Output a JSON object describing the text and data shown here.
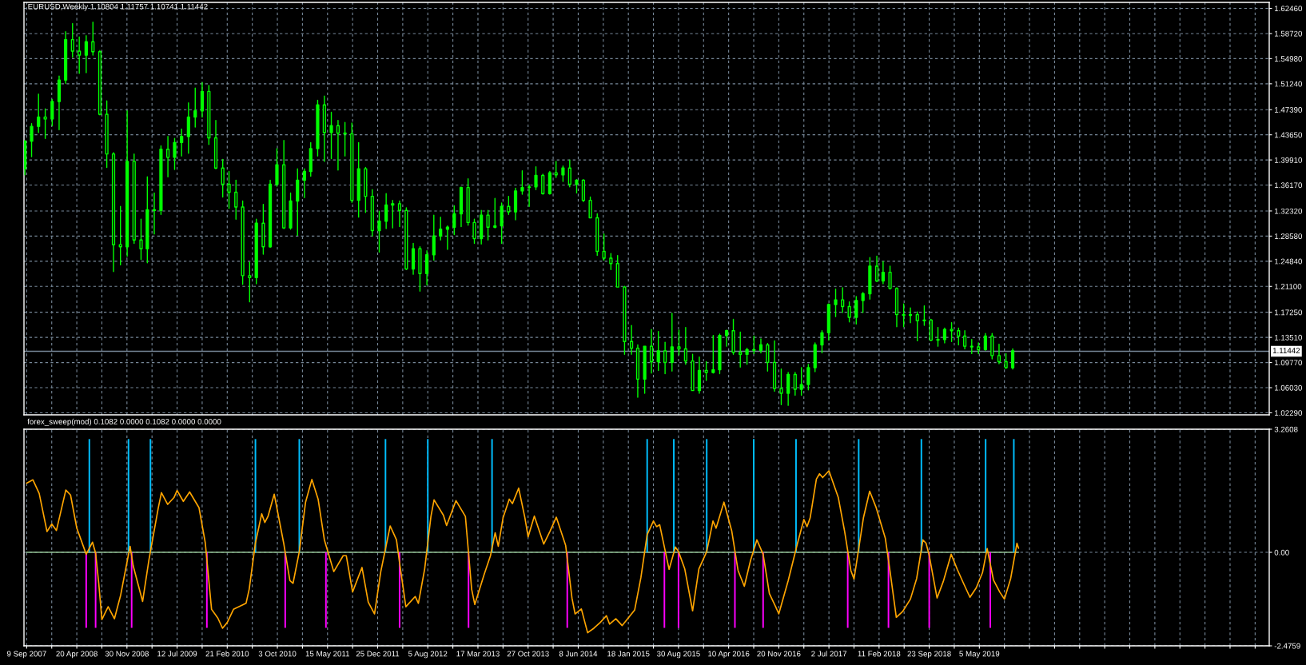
{
  "chart_data": [
    {
      "type": "candlestick",
      "title": "EURUSD,Weekly 1.10804 1.11757 1.10741 1.11442",
      "color": "#00ff00",
      "x": [
        "2007-09",
        "2007-10",
        "2007-11",
        "2007-12",
        "2008-01",
        "2008-02",
        "2008-03",
        "2008-04",
        "2008-05",
        "2008-06",
        "2008-07",
        "2008-08",
        "2008-09",
        "2008-10",
        "2008-11",
        "2008-12",
        "2009-01",
        "2009-02",
        "2009-03",
        "2009-04",
        "2009-05",
        "2009-06",
        "2009-07",
        "2009-08",
        "2009-09",
        "2009-10",
        "2009-11",
        "2009-12",
        "2010-01",
        "2010-02",
        "2010-03",
        "2010-04",
        "2010-05",
        "2010-06",
        "2010-07",
        "2010-08",
        "2010-09",
        "2010-10",
        "2010-11",
        "2010-12",
        "2011-01",
        "2011-02",
        "2011-03",
        "2011-04",
        "2011-05",
        "2011-06",
        "2011-07",
        "2011-08",
        "2011-09",
        "2011-10",
        "2011-11",
        "2011-12",
        "2012-01",
        "2012-02",
        "2012-03",
        "2012-04",
        "2012-05",
        "2012-06",
        "2012-07",
        "2012-08",
        "2012-09",
        "2012-10",
        "2012-11",
        "2012-12",
        "2013-01",
        "2013-02",
        "2013-03",
        "2013-04",
        "2013-05",
        "2013-06",
        "2013-07",
        "2013-08",
        "2013-09",
        "2013-10",
        "2013-11",
        "2013-12",
        "2014-01",
        "2014-02",
        "2014-03",
        "2014-04",
        "2014-05",
        "2014-06",
        "2014-07",
        "2014-08",
        "2014-09",
        "2014-10",
        "2014-11",
        "2014-12",
        "2015-01",
        "2015-02",
        "2015-03",
        "2015-04",
        "2015-05",
        "2015-06",
        "2015-07",
        "2015-08",
        "2015-09",
        "2015-10",
        "2015-11",
        "2015-12",
        "2016-01",
        "2016-02",
        "2016-03",
        "2016-04",
        "2016-05",
        "2016-06",
        "2016-07",
        "2016-08",
        "2016-09",
        "2016-10",
        "2016-11",
        "2016-12",
        "2017-01",
        "2017-02",
        "2017-03",
        "2017-04",
        "2017-05",
        "2017-06",
        "2017-07",
        "2017-08",
        "2017-09",
        "2017-10",
        "2017-11",
        "2017-12",
        "2018-01",
        "2018-02",
        "2018-03",
        "2018-04",
        "2018-05",
        "2018-06",
        "2018-07",
        "2018-08",
        "2018-09",
        "2018-10",
        "2018-11",
        "2018-12",
        "2019-01",
        "2019-02",
        "2019-03",
        "2019-04",
        "2019-05",
        "2019-06",
        "2019-07",
        "2019-08",
        "2019-09",
        "2019-10"
      ],
      "ohlc": [
        [
          1.386,
          1.428,
          1.377,
          1.427
        ],
        [
          1.427,
          1.453,
          1.404,
          1.449
        ],
        [
          1.449,
          1.497,
          1.44,
          1.463
        ],
        [
          1.463,
          1.475,
          1.431,
          1.46
        ],
        [
          1.46,
          1.489,
          1.45,
          1.486
        ],
        [
          1.486,
          1.524,
          1.444,
          1.518
        ],
        [
          1.518,
          1.59,
          1.513,
          1.578
        ],
        [
          1.578,
          1.602,
          1.552,
          1.561
        ],
        [
          1.561,
          1.582,
          1.528,
          1.555
        ],
        [
          1.555,
          1.584,
          1.529,
          1.575
        ],
        [
          1.575,
          1.604,
          1.555,
          1.56
        ],
        [
          1.56,
          1.562,
          1.466,
          1.467
        ],
        [
          1.467,
          1.487,
          1.388,
          1.408
        ],
        [
          1.408,
          1.41,
          1.233,
          1.273
        ],
        [
          1.273,
          1.33,
          1.243,
          1.27
        ],
        [
          1.27,
          1.472,
          1.256,
          1.397
        ],
        [
          1.397,
          1.408,
          1.275,
          1.28
        ],
        [
          1.28,
          1.311,
          1.251,
          1.267
        ],
        [
          1.267,
          1.374,
          1.246,
          1.325
        ],
        [
          1.325,
          1.35,
          1.289,
          1.324
        ],
        [
          1.324,
          1.42,
          1.318,
          1.415
        ],
        [
          1.415,
          1.434,
          1.374,
          1.403
        ],
        [
          1.403,
          1.431,
          1.385,
          1.425
        ],
        [
          1.425,
          1.445,
          1.405,
          1.434
        ],
        [
          1.434,
          1.484,
          1.409,
          1.463
        ],
        [
          1.463,
          1.506,
          1.448,
          1.472
        ],
        [
          1.472,
          1.514,
          1.463,
          1.501
        ],
        [
          1.501,
          1.51,
          1.422,
          1.432
        ],
        [
          1.432,
          1.458,
          1.386,
          1.387
        ],
        [
          1.387,
          1.4,
          1.344,
          1.363
        ],
        [
          1.363,
          1.382,
          1.327,
          1.351
        ],
        [
          1.351,
          1.369,
          1.311,
          1.329
        ],
        [
          1.329,
          1.338,
          1.214,
          1.227
        ],
        [
          1.227,
          1.247,
          1.188,
          1.224
        ],
        [
          1.224,
          1.311,
          1.215,
          1.305
        ],
        [
          1.305,
          1.333,
          1.259,
          1.27
        ],
        [
          1.27,
          1.369,
          1.269,
          1.363
        ],
        [
          1.363,
          1.416,
          1.36,
          1.392
        ],
        [
          1.392,
          1.428,
          1.297,
          1.298
        ],
        [
          1.298,
          1.35,
          1.296,
          1.338
        ],
        [
          1.338,
          1.386,
          1.287,
          1.369
        ],
        [
          1.369,
          1.386,
          1.343,
          1.382
        ],
        [
          1.382,
          1.425,
          1.375,
          1.416
        ],
        [
          1.416,
          1.488,
          1.405,
          1.481
        ],
        [
          1.481,
          1.494,
          1.397,
          1.44
        ],
        [
          1.44,
          1.47,
          1.401,
          1.45
        ],
        [
          1.45,
          1.458,
          1.384,
          1.439
        ],
        [
          1.439,
          1.455,
          1.405,
          1.438
        ],
        [
          1.438,
          1.454,
          1.336,
          1.339
        ],
        [
          1.339,
          1.425,
          1.314,
          1.386
        ],
        [
          1.386,
          1.388,
          1.321,
          1.345
        ],
        [
          1.345,
          1.355,
          1.286,
          1.294
        ],
        [
          1.294,
          1.323,
          1.262,
          1.308
        ],
        [
          1.308,
          1.349,
          1.297,
          1.332
        ],
        [
          1.332,
          1.339,
          1.298,
          1.334
        ],
        [
          1.334,
          1.338,
          1.3,
          1.324
        ],
        [
          1.324,
          1.328,
          1.236,
          1.237
        ],
        [
          1.237,
          1.275,
          1.229,
          1.267
        ],
        [
          1.267,
          1.27,
          1.204,
          1.23
        ],
        [
          1.23,
          1.264,
          1.213,
          1.258
        ],
        [
          1.258,
          1.317,
          1.25,
          1.286
        ],
        [
          1.286,
          1.314,
          1.28,
          1.296
        ],
        [
          1.296,
          1.301,
          1.266,
          1.299
        ],
        [
          1.299,
          1.331,
          1.288,
          1.319
        ],
        [
          1.319,
          1.359,
          1.3,
          1.358
        ],
        [
          1.358,
          1.371,
          1.302,
          1.306
        ],
        [
          1.306,
          1.311,
          1.275,
          1.282
        ],
        [
          1.282,
          1.324,
          1.274,
          1.317
        ],
        [
          1.317,
          1.324,
          1.28,
          1.299
        ],
        [
          1.299,
          1.342,
          1.298,
          1.301
        ],
        [
          1.301,
          1.335,
          1.275,
          1.33
        ],
        [
          1.33,
          1.345,
          1.318,
          1.322
        ],
        [
          1.322,
          1.357,
          1.31,
          1.353
        ],
        [
          1.353,
          1.383,
          1.348,
          1.358
        ],
        [
          1.358,
          1.362,
          1.33,
          1.359
        ],
        [
          1.359,
          1.389,
          1.355,
          1.376
        ],
        [
          1.376,
          1.378,
          1.348,
          1.349
        ],
        [
          1.349,
          1.382,
          1.348,
          1.38
        ],
        [
          1.38,
          1.397,
          1.373,
          1.377
        ],
        [
          1.377,
          1.39,
          1.367,
          1.387
        ],
        [
          1.387,
          1.399,
          1.359,
          1.363
        ],
        [
          1.363,
          1.37,
          1.35,
          1.369
        ],
        [
          1.369,
          1.37,
          1.337,
          1.339
        ],
        [
          1.339,
          1.344,
          1.313,
          1.313
        ],
        [
          1.313,
          1.319,
          1.257,
          1.263
        ],
        [
          1.263,
          1.289,
          1.25,
          1.253
        ],
        [
          1.253,
          1.26,
          1.236,
          1.245
        ],
        [
          1.245,
          1.257,
          1.21,
          1.21
        ],
        [
          1.21,
          1.211,
          1.11,
          1.129
        ],
        [
          1.129,
          1.153,
          1.11,
          1.119
        ],
        [
          1.119,
          1.124,
          1.046,
          1.073
        ],
        [
          1.073,
          1.122,
          1.052,
          1.122
        ],
        [
          1.122,
          1.147,
          1.082,
          1.099
        ],
        [
          1.099,
          1.144,
          1.086,
          1.115
        ],
        [
          1.115,
          1.128,
          1.081,
          1.098
        ],
        [
          1.098,
          1.171,
          1.085,
          1.121
        ],
        [
          1.121,
          1.146,
          1.109,
          1.118
        ],
        [
          1.118,
          1.15,
          1.095,
          1.1
        ],
        [
          1.1,
          1.11,
          1.056,
          1.056
        ],
        [
          1.056,
          1.106,
          1.052,
          1.086
        ],
        [
          1.086,
          1.099,
          1.071,
          1.083
        ],
        [
          1.083,
          1.138,
          1.082,
          1.087
        ],
        [
          1.087,
          1.14,
          1.081,
          1.138
        ],
        [
          1.138,
          1.146,
          1.122,
          1.145
        ],
        [
          1.145,
          1.162,
          1.11,
          1.113
        ],
        [
          1.113,
          1.143,
          1.091,
          1.11
        ],
        [
          1.11,
          1.119,
          1.095,
          1.117
        ],
        [
          1.117,
          1.137,
          1.111,
          1.116
        ],
        [
          1.116,
          1.133,
          1.112,
          1.124
        ],
        [
          1.124,
          1.126,
          1.085,
          1.098
        ],
        [
          1.098,
          1.13,
          1.055,
          1.059
        ],
        [
          1.059,
          1.088,
          1.035,
          1.052
        ],
        [
          1.052,
          1.083,
          1.034,
          1.08
        ],
        [
          1.08,
          1.083,
          1.049,
          1.058
        ],
        [
          1.058,
          1.09,
          1.049,
          1.065
        ],
        [
          1.065,
          1.095,
          1.057,
          1.09
        ],
        [
          1.09,
          1.127,
          1.084,
          1.124
        ],
        [
          1.124,
          1.145,
          1.112,
          1.142
        ],
        [
          1.142,
          1.185,
          1.131,
          1.184
        ],
        [
          1.184,
          1.207,
          1.166,
          1.191
        ],
        [
          1.191,
          1.209,
          1.172,
          1.181
        ],
        [
          1.181,
          1.188,
          1.158,
          1.165
        ],
        [
          1.165,
          1.196,
          1.155,
          1.19
        ],
        [
          1.19,
          1.202,
          1.172,
          1.2
        ],
        [
          1.2,
          1.254,
          1.192,
          1.241
        ],
        [
          1.241,
          1.256,
          1.218,
          1.219
        ],
        [
          1.219,
          1.248,
          1.215,
          1.232
        ],
        [
          1.232,
          1.241,
          1.207,
          1.208
        ],
        [
          1.208,
          1.209,
          1.151,
          1.169
        ],
        [
          1.169,
          1.185,
          1.151,
          1.168
        ],
        [
          1.168,
          1.179,
          1.157,
          1.169
        ],
        [
          1.169,
          1.173,
          1.13,
          1.16
        ],
        [
          1.16,
          1.182,
          1.153,
          1.161
        ],
        [
          1.161,
          1.162,
          1.13,
          1.131
        ],
        [
          1.131,
          1.15,
          1.122,
          1.132
        ],
        [
          1.132,
          1.149,
          1.127,
          1.147
        ],
        [
          1.147,
          1.157,
          1.129,
          1.145
        ],
        [
          1.145,
          1.149,
          1.124,
          1.137
        ],
        [
          1.137,
          1.145,
          1.118,
          1.122
        ],
        [
          1.122,
          1.132,
          1.111,
          1.121
        ],
        [
          1.121,
          1.127,
          1.111,
          1.117
        ],
        [
          1.117,
          1.141,
          1.116,
          1.137
        ],
        [
          1.137,
          1.141,
          1.103,
          1.108
        ],
        [
          1.108,
          1.125,
          1.096,
          1.099
        ],
        [
          1.099,
          1.111,
          1.089,
          1.09
        ],
        [
          1.09,
          1.118,
          1.088,
          1.115
        ]
      ],
      "xlim": [
        "2007-08-28",
        "2022-11-20"
      ],
      "ylim": [
        1.0199,
        1.6335
      ],
      "xticks": [
        {
          "value": "2007-09-09",
          "label": null
        },
        {
          "value": "2007-12-30",
          "label": null
        },
        {
          "value": "2008-04-20",
          "label": null
        },
        {
          "value": "2008-08-10",
          "label": null
        },
        {
          "value": "2008-11-30",
          "label": null
        },
        {
          "value": "2009-03-22",
          "label": null
        },
        {
          "value": "2009-07-12",
          "label": null
        },
        {
          "value": "2009-11-01",
          "label": null
        },
        {
          "value": "2010-02-21",
          "label": null
        },
        {
          "value": "2010-06-13",
          "label": null
        },
        {
          "value": "2010-10-03",
          "label": null
        },
        {
          "value": "2011-01-23",
          "label": null
        },
        {
          "value": "2011-05-15",
          "label": null
        },
        {
          "value": "2011-09-04",
          "label": null
        },
        {
          "value": "2011-12-25",
          "label": null
        },
        {
          "value": "2012-04-15",
          "label": null
        },
        {
          "value": "2012-08-05",
          "label": null
        },
        {
          "value": "2012-11-25",
          "label": null
        },
        {
          "value": "2013-03-17",
          "label": null
        },
        {
          "value": "2013-07-07",
          "label": null
        },
        {
          "value": "2013-10-27",
          "label": null
        },
        {
          "value": "2014-02-16",
          "label": null
        },
        {
          "value": "2014-06-08",
          "label": null
        },
        {
          "value": "2014-09-28",
          "label": null
        },
        {
          "value": "2015-01-18",
          "label": null
        },
        {
          "value": "2015-05-10",
          "label": null
        },
        {
          "value": "2015-08-30",
          "label": null
        },
        {
          "value": "2015-12-20",
          "label": null
        },
        {
          "value": "2016-04-10",
          "label": null
        },
        {
          "value": "2016-07-31",
          "label": null
        },
        {
          "value": "2016-11-20",
          "label": null
        },
        {
          "value": "2017-03-12",
          "label": null
        },
        {
          "value": "2017-07-02",
          "label": null
        },
        {
          "value": "2017-10-22",
          "label": null
        },
        {
          "value": "2018-02-11",
          "label": null
        },
        {
          "value": "2018-06-03",
          "label": null
        },
        {
          "value": "2018-09-23",
          "label": null
        },
        {
          "value": "2019-01-13",
          "label": null
        },
        {
          "value": "2019-05-05",
          "label": null
        },
        {
          "value": "2019-08-25",
          "label": null
        },
        {
          "value": "2019-12-15",
          "label": null
        },
        {
          "value": "2020-04-05",
          "label": null
        },
        {
          "value": "2020-07-26",
          "label": null
        },
        {
          "value": "2020-11-15",
          "label": null
        },
        {
          "value": "2021-03-07",
          "label": null
        },
        {
          "value": "2021-06-27",
          "label": null
        },
        {
          "value": "2021-10-17",
          "label": null
        },
        {
          "value": "2022-02-06",
          "label": null
        },
        {
          "value": "2022-05-29",
          "label": null
        },
        {
          "value": "2022-09-18",
          "label": null
        }
      ],
      "yticks": [
        {
          "value": 1.6246,
          "label": "1.62460"
        },
        {
          "value": 1.5872,
          "label": "1.58720"
        },
        {
          "value": 1.5498,
          "label": "1.54980"
        },
        {
          "value": 1.5124,
          "label": "1.51240"
        },
        {
          "value": 1.4739,
          "label": "1.47390"
        },
        {
          "value": 1.4365,
          "label": "1.43650"
        },
        {
          "value": 1.3991,
          "label": "1.39910"
        },
        {
          "value": 1.3617,
          "label": "1.36170"
        },
        {
          "value": 1.3232,
          "label": "1.32320"
        },
        {
          "value": 1.2858,
          "label": "1.28580"
        },
        {
          "value": 1.2484,
          "label": "1.24840"
        },
        {
          "value": 1.211,
          "label": "1.21100"
        },
        {
          "value": 1.1725,
          "label": "1.17250"
        },
        {
          "value": 1.1351,
          "label": "1.13510"
        },
        {
          "value": 1.0977,
          "label": "1.09770"
        },
        {
          "value": 1.0603,
          "label": "1.06030"
        },
        {
          "value": 1.0229,
          "label": "1.02290"
        }
      ],
      "tick_labels": "y",
      "grid": true,
      "ref_lines": [
        {
          "axis": "y",
          "value": 1.11442,
          "label": "1.11442",
          "color": "#778899"
        }
      ]
    },
    {
      "type": "line",
      "title": "forex_sweep(mod) 0.1082 0.0000 0.1082 0.0000 0.0000",
      "series": [
        {
          "type": "line",
          "color": "#8fbc8f",
          "x": [
            "2007-09-09",
            "2019-10-27"
          ],
          "values": [
            0,
            0
          ]
        },
        {
          "type": "line",
          "color": "#ffa500",
          "x": [
            "2007-09-09",
            "2007-10-07",
            "2007-11-04",
            "2007-12-09",
            "2007-12-30",
            "2008-01-20",
            "2008-03-02",
            "2008-03-23",
            "2008-04-20",
            "2008-06-01",
            "2008-06-29",
            "2008-07-13",
            "2008-07-27",
            "2008-08-10",
            "2008-09-07",
            "2008-10-05",
            "2008-11-02",
            "2008-12-14",
            "2008-12-28",
            "2009-02-08",
            "2009-03-08",
            "2009-04-19",
            "2009-05-03",
            "2009-05-31",
            "2009-06-28",
            "2009-07-12",
            "2009-08-09",
            "2009-09-06",
            "2009-10-18",
            "2009-11-15",
            "2009-12-13",
            "2010-01-10",
            "2010-01-31",
            "2010-02-21",
            "2010-03-21",
            "2010-05-16",
            "2010-05-30",
            "2010-06-27",
            "2010-07-25",
            "2010-08-08",
            "2010-08-22",
            "2010-09-19",
            "2010-10-31",
            "2010-11-28",
            "2010-12-12",
            "2011-01-09",
            "2011-02-06",
            "2011-03-06",
            "2011-04-03",
            "2011-05-01",
            "2011-06-12",
            "2011-07-24",
            "2011-08-07",
            "2011-09-04",
            "2011-10-16",
            "2011-11-13",
            "2011-12-11",
            "2012-01-08",
            "2012-02-19",
            "2012-03-18",
            "2012-04-01",
            "2012-04-29",
            "2012-06-10",
            "2012-06-24",
            "2012-07-22",
            "2012-08-19",
            "2012-09-02",
            "2012-10-14",
            "2012-10-28",
            "2012-12-09",
            "2013-01-20",
            "2013-02-17",
            "2013-03-03",
            "2013-04-14",
            "2013-05-12",
            "2013-06-02",
            "2013-06-16",
            "2013-07-07",
            "2013-08-04",
            "2013-08-18",
            "2013-09-15",
            "2013-10-13",
            "2013-10-27",
            "2013-11-24",
            "2014-01-05",
            "2014-02-02",
            "2014-03-02",
            "2014-04-13",
            "2014-05-11",
            "2014-05-25",
            "2014-06-22",
            "2014-07-20",
            "2014-08-17",
            "2014-09-14",
            "2014-10-12",
            "2014-10-26",
            "2014-11-23",
            "2014-12-21",
            "2015-02-15",
            "2015-03-15",
            "2015-04-12",
            "2015-05-10",
            "2015-05-24",
            "2015-06-07",
            "2015-07-19",
            "2015-08-16",
            "2015-08-30",
            "2015-09-27",
            "2015-11-01",
            "2015-11-29",
            "2016-01-03",
            "2016-01-31",
            "2016-02-14",
            "2016-03-20",
            "2016-04-24",
            "2016-05-22",
            "2016-06-19",
            "2016-07-17",
            "2016-08-14",
            "2016-09-11",
            "2016-10-09",
            "2016-11-06",
            "2016-11-20",
            "2017-01-01",
            "2017-02-12",
            "2017-03-12",
            "2017-03-26",
            "2017-04-09",
            "2017-05-07",
            "2017-05-21",
            "2017-06-04",
            "2017-07-02",
            "2017-08-13",
            "2017-09-10",
            "2017-10-08",
            "2017-10-22",
            "2017-12-03",
            "2017-12-31",
            "2018-01-28",
            "2018-03-11",
            "2018-04-01",
            "2018-04-29",
            "2018-05-27",
            "2018-07-01",
            "2018-07-29",
            "2018-08-26",
            "2018-09-09",
            "2018-09-23",
            "2018-10-28",
            "2018-11-25",
            "2018-12-30",
            "2019-01-27",
            "2019-02-24",
            "2019-03-24",
            "2019-04-21",
            "2019-05-19",
            "2019-06-09",
            "2019-07-07",
            "2019-08-04",
            "2019-08-25",
            "2019-09-22",
            "2019-10-20",
            "2019-10-27"
          ],
          "values": [
            1.83,
            1.92,
            1.56,
            0.55,
            0.75,
            0.58,
            1.65,
            1.52,
            0.64,
            -0.05,
            0.27,
            -0.02,
            -0.82,
            -1.78,
            -1.44,
            -1.76,
            -1.13,
            0.16,
            -0.36,
            -1.3,
            -0.21,
            1.18,
            1.58,
            1.27,
            1.45,
            1.64,
            1.35,
            1.6,
            1.18,
            0.25,
            -1.51,
            -1.74,
            -2.01,
            -1.86,
            -1.51,
            -1.35,
            -0.98,
            0.25,
            1.02,
            0.79,
            0.95,
            1.54,
            0.25,
            -0.75,
            -0.82,
            0.02,
            1.33,
            1.93,
            1.41,
            0.33,
            -0.51,
            -0.09,
            -0.09,
            -1.05,
            -0.4,
            -1.32,
            -1.63,
            -0.51,
            0.7,
            0.33,
            -0.28,
            -1.44,
            -1.17,
            -1.35,
            -0.44,
            0.95,
            1.39,
            0.98,
            0.71,
            1.37,
            0.95,
            -0.98,
            -1.38,
            -0.58,
            -0.09,
            0.52,
            0.16,
            0.91,
            1.41,
            1.29,
            1.7,
            0.91,
            0.41,
            0.96,
            0.22,
            0.56,
            0.93,
            0.18,
            -1.21,
            -1.63,
            -1.5,
            -2.13,
            -2.01,
            -1.86,
            -1.68,
            -1.9,
            -1.76,
            -1.94,
            -1.53,
            -0.67,
            0.47,
            0.83,
            0.68,
            0.73,
            -0.45,
            0.14,
            0.02,
            -0.44,
            -1.55,
            -0.44,
            0.02,
            0.83,
            0.64,
            1.33,
            0.56,
            -0.48,
            -0.9,
            -0.21,
            0.33,
            -0.05,
            -1.09,
            -1.44,
            -1.63,
            -0.75,
            0.25,
            0.87,
            0.68,
            0.91,
            1.94,
            2.08,
            1.98,
            2.16,
            1.45,
            0.56,
            -0.48,
            -0.71,
            0.91,
            1.62,
            1.2,
            0.37,
            -0.5,
            -1.72,
            -1.57,
            -1.24,
            -0.69,
            0.33,
            0.24,
            -0.08,
            -1.21,
            -0.77,
            -0.05,
            -0.46,
            -0.83,
            -1.19,
            -0.94,
            -0.54,
            0.1,
            -0.73,
            -1.05,
            -1.24,
            -0.69,
            0.24,
            0.11
          ]
        },
        {
          "type": "bar",
          "color": "#00bfff",
          "x": [
            "2008-06-15",
            "2008-12-07",
            "2009-03-15",
            "2010-06-27",
            "2011-01-09",
            "2012-01-29",
            "2012-08-05",
            "2013-05-19",
            "2015-04-12",
            "2015-08-09",
            "2016-01-03",
            "2016-07-31",
            "2017-02-05",
            "2017-11-12",
            "2018-08-19",
            "2019-06-02",
            "2019-10-06"
          ],
          "values": [
            3,
            3,
            3,
            3,
            3,
            3,
            3,
            3,
            3,
            3,
            3,
            3,
            3,
            3,
            3,
            3,
            3
          ]
        },
        {
          "type": "bar",
          "color": "#ff00ff",
          "x": [
            "2008-06-01",
            "2008-07-13",
            "2008-12-21",
            "2009-11-22",
            "2010-11-07",
            "2011-05-08",
            "2012-04-01",
            "2013-02-03",
            "2014-04-20",
            "2015-06-28",
            "2015-08-30",
            "2016-05-08",
            "2016-09-11",
            "2017-09-24",
            "2018-03-25",
            "2018-09-23",
            "2019-06-23"
          ],
          "values": [
            -2,
            -2,
            -2,
            -2,
            -2,
            -2,
            -2,
            -2,
            -2,
            -2,
            -2,
            -2,
            -2,
            -2,
            -2,
            -2,
            -2
          ]
        }
      ],
      "xlim": [
        "2007-08-28",
        "2022-11-20"
      ],
      "ylim": [
        -2.4759,
        3.2608
      ],
      "xticks": [
        {
          "value": "2007-09-09",
          "label": "9 Sep 2007"
        },
        {
          "value": "2007-12-30",
          "label": null
        },
        {
          "value": "2008-04-20",
          "label": "20 Apr 2008"
        },
        {
          "value": "2008-08-10",
          "label": null
        },
        {
          "value": "2008-11-30",
          "label": "30 Nov 2008"
        },
        {
          "value": "2009-03-22",
          "label": null
        },
        {
          "value": "2009-07-12",
          "label": "12 Jul 2009"
        },
        {
          "value": "2009-11-01",
          "label": null
        },
        {
          "value": "2010-02-21",
          "label": "21 Feb 2010"
        },
        {
          "value": "2010-06-13",
          "label": null
        },
        {
          "value": "2010-10-03",
          "label": "3 Oct 2010"
        },
        {
          "value": "2011-01-23",
          "label": null
        },
        {
          "value": "2011-05-15",
          "label": "15 May 2011"
        },
        {
          "value": "2011-09-04",
          "label": null
        },
        {
          "value": "2011-12-25",
          "label": "25 Dec 2011"
        },
        {
          "value": "2012-04-15",
          "label": null
        },
        {
          "value": "2012-08-05",
          "label": "5 Aug 2012"
        },
        {
          "value": "2012-11-25",
          "label": null
        },
        {
          "value": "2013-03-17",
          "label": "17 Mar 2013"
        },
        {
          "value": "2013-07-07",
          "label": null
        },
        {
          "value": "2013-10-27",
          "label": "27 Oct 2013"
        },
        {
          "value": "2014-02-16",
          "label": null
        },
        {
          "value": "2014-06-08",
          "label": "8 Jun 2014"
        },
        {
          "value": "2014-09-28",
          "label": null
        },
        {
          "value": "2015-01-18",
          "label": "18 Jan 2015"
        },
        {
          "value": "2015-05-10",
          "label": null
        },
        {
          "value": "2015-08-30",
          "label": "30 Aug 2015"
        },
        {
          "value": "2015-12-20",
          "label": null
        },
        {
          "value": "2016-04-10",
          "label": "10 Apr 2016"
        },
        {
          "value": "2016-07-31",
          "label": null
        },
        {
          "value": "2016-11-20",
          "label": "20 Nov 2016"
        },
        {
          "value": "2017-03-12",
          "label": null
        },
        {
          "value": "2017-07-02",
          "label": "2 Jul 2017"
        },
        {
          "value": "2017-10-22",
          "label": null
        },
        {
          "value": "2018-02-11",
          "label": "11 Feb 2018"
        },
        {
          "value": "2018-06-03",
          "label": null
        },
        {
          "value": "2018-09-23",
          "label": "23 Sep 2018"
        },
        {
          "value": "2019-01-13",
          "label": null
        },
        {
          "value": "2019-05-05",
          "label": "5 May 2019"
        },
        {
          "value": "2019-08-25",
          "label": null
        },
        {
          "value": "2019-12-15",
          "label": null
        },
        {
          "value": "2020-04-05",
          "label": null
        },
        {
          "value": "2020-07-26",
          "label": null
        },
        {
          "value": "2020-11-15",
          "label": null
        },
        {
          "value": "2021-03-07",
          "label": null
        },
        {
          "value": "2021-06-27",
          "label": null
        },
        {
          "value": "2021-10-17",
          "label": null
        },
        {
          "value": "2022-02-06",
          "label": null
        },
        {
          "value": "2022-05-29",
          "label": null
        },
        {
          "value": "2022-09-18",
          "label": null
        }
      ],
      "yticks": [
        3.2608,
        {
          "value": 0,
          "label": "0.00"
        },
        -2.4759
      ],
      "grid": true
    }
  ]
}
